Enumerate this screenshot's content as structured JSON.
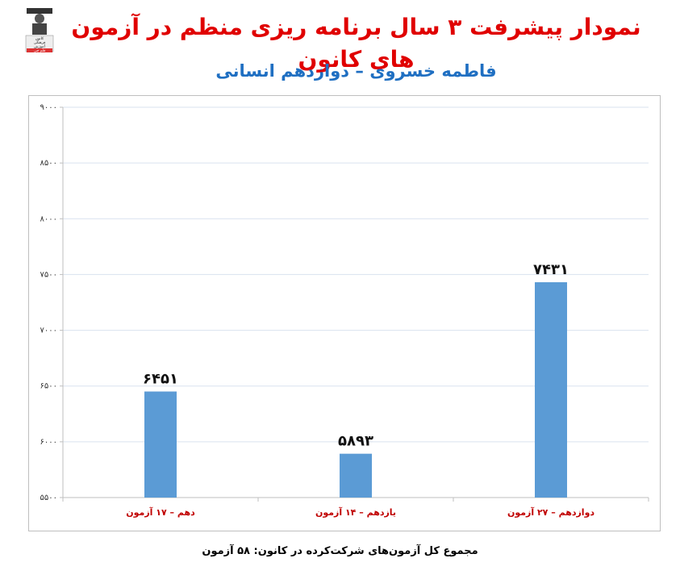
{
  "header": {
    "title": "نمودار پیشرفت ۳ سال برنامه ریزی منظم در آزمون های کانون",
    "subtitle": "فاطمه خسروی – دوازدهم انسانی"
  },
  "logo": {
    "icon": "graduate-logo-icon",
    "text_lines": [
      "کانون",
      "فرهنگی",
      "آموزش",
      "قلم چی"
    ]
  },
  "footer": {
    "text": "مجموع کل آزمون‌های شرکت‌کرده در کانون:  ۵۸ آزمون"
  },
  "colors": {
    "bar": "#5b9bd5",
    "title": "#e00000",
    "subtitle": "#1f6fc2",
    "category_label": "#c00000",
    "grid": "#d9e2ef"
  },
  "chart_data": {
    "type": "bar",
    "categories": [
      "دهم – ۱۷ آزمون",
      "یازدهم – ۱۴ آزمون",
      "دوازدهم – ۲۷ آزمون"
    ],
    "values": [
      6451,
      5893,
      7431
    ],
    "value_labels": [
      "۶۴۵۱",
      "۵۸۹۳",
      "۷۴۳۱"
    ],
    "ylim": [
      5500,
      9000
    ],
    "yticks": [
      5500,
      6000,
      6500,
      7000,
      7500,
      8000,
      8500,
      9000
    ],
    "ytick_labels": [
      "۵۵۰۰",
      "۶۰۰۰",
      "۶۵۰۰",
      "۷۰۰۰",
      "۷۵۰۰",
      "۸۰۰۰",
      "۸۵۰۰",
      "۹۰۰۰"
    ],
    "grid": true,
    "legend": false,
    "title": "",
    "xlabel": "",
    "ylabel": ""
  }
}
